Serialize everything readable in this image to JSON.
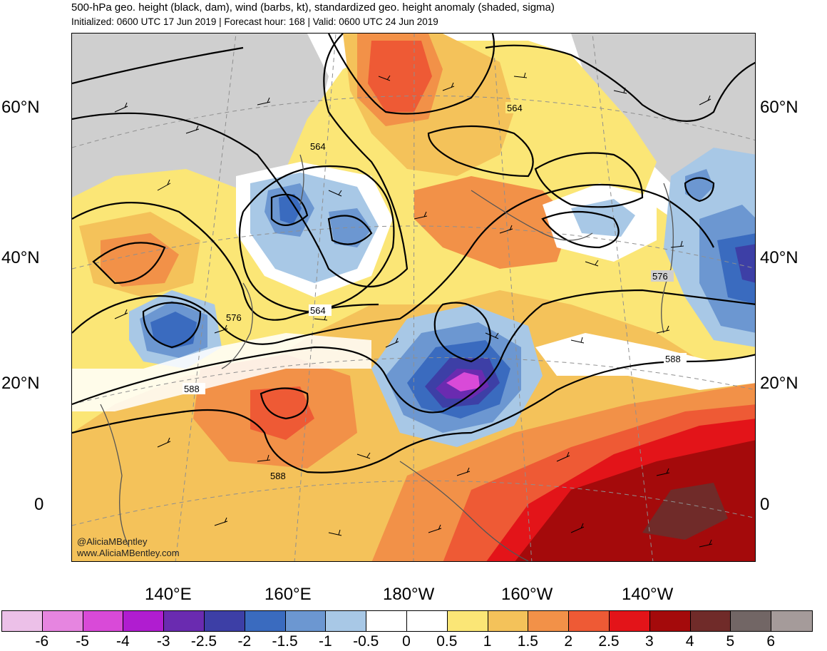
{
  "header": {
    "title": "500-hPa geo. height (black, dam), wind (barbs, kt), standardized geo. height anomaly (shaded, sigma)",
    "subtitle": "Initialized: 0600 UTC 17 Jun 2019 | Forecast hour: 168 | Valid: 0600 UTC 24 Jun 2019"
  },
  "map": {
    "lat_labels": [
      "60°N",
      "40°N",
      "20°N",
      "0"
    ],
    "lon_labels": [
      "140°E",
      "160°E",
      "180°W",
      "160°W",
      "140°W"
    ],
    "contour_labels": [
      "564",
      "564",
      "564",
      "576",
      "576",
      "588",
      "588",
      "588"
    ],
    "credit_line1": "@AliciaMBentley",
    "credit_line2": "www.AliciaMBentley.com"
  },
  "colorbar": {
    "ticks": [
      "-6",
      "-5",
      "-4",
      "-3",
      "-2.5",
      "-2",
      "-1.5",
      "-1",
      "-0.5",
      "0",
      "0.5",
      "1",
      "1.5",
      "2",
      "2.5",
      "3",
      "4",
      "5",
      "6"
    ],
    "colors": [
      "#ecc0e8",
      "#e685e0",
      "#d94ad8",
      "#b01dd0",
      "#6a2bb0",
      "#3d3fa6",
      "#3a6bbf",
      "#6c97d1",
      "#a8c8e6",
      "#ffffff",
      "#ffffff",
      "#fbe676",
      "#f4c25a",
      "#f29148",
      "#ee5a35",
      "#e31419",
      "#a40a0b",
      "#702b29",
      "#726665",
      "#a59b9a"
    ]
  }
}
